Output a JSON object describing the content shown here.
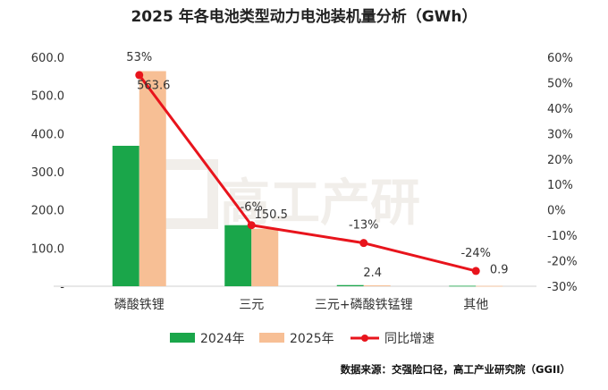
{
  "chart_data": {
    "type": "bar",
    "title": "2025 年各电池类型动力电池装机量分析（GWh）",
    "categories": [
      "磷酸铁锂",
      "三元",
      "三元+磷酸铁锰锂",
      "其他"
    ],
    "series": [
      {
        "name": "2024年",
        "type": "bar",
        "axis": "left",
        "color": "#1aa64a",
        "values": [
          368,
          160,
          3,
          1.2
        ],
        "labels": [
          "",
          "",
          "",
          ""
        ]
      },
      {
        "name": "2025年",
        "type": "bar",
        "axis": "left",
        "color": "#f7bf95",
        "values": [
          563.6,
          150.5,
          2.4,
          0.9
        ],
        "labels": [
          "563.6",
          "150.5",
          "2.4",
          "0.9"
        ]
      },
      {
        "name": "同比增速",
        "type": "line",
        "axis": "right",
        "color": "#e8141c",
        "values": [
          53,
          -6,
          -13,
          -24
        ],
        "labels": [
          "53%",
          "-6%",
          "-13%",
          "-24%"
        ]
      }
    ],
    "y_left": {
      "min": 0,
      "max": 600,
      "ticks": [
        "-",
        "100.0",
        "200.0",
        "300.0",
        "400.0",
        "500.0",
        "600.0"
      ]
    },
    "y_right": {
      "min": -30,
      "max": 60,
      "ticks": [
        "-30%",
        "-20%",
        "-10%",
        "0%",
        "10%",
        "20%",
        "30%",
        "40%",
        "50%",
        "60%"
      ]
    },
    "legend": {
      "position": "bottom"
    },
    "grid": false
  },
  "watermark": "高工产研",
  "source_note": "数据来源：交强险口径，高工产业研究院（GGII）"
}
